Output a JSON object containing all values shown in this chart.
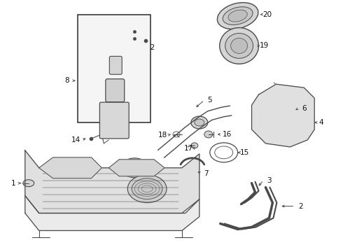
{
  "bg_color": "#ffffff",
  "line_color": "#4a4a4a",
  "text_color": "#111111",
  "fig_width": 4.9,
  "fig_height": 3.6,
  "dpi": 100
}
